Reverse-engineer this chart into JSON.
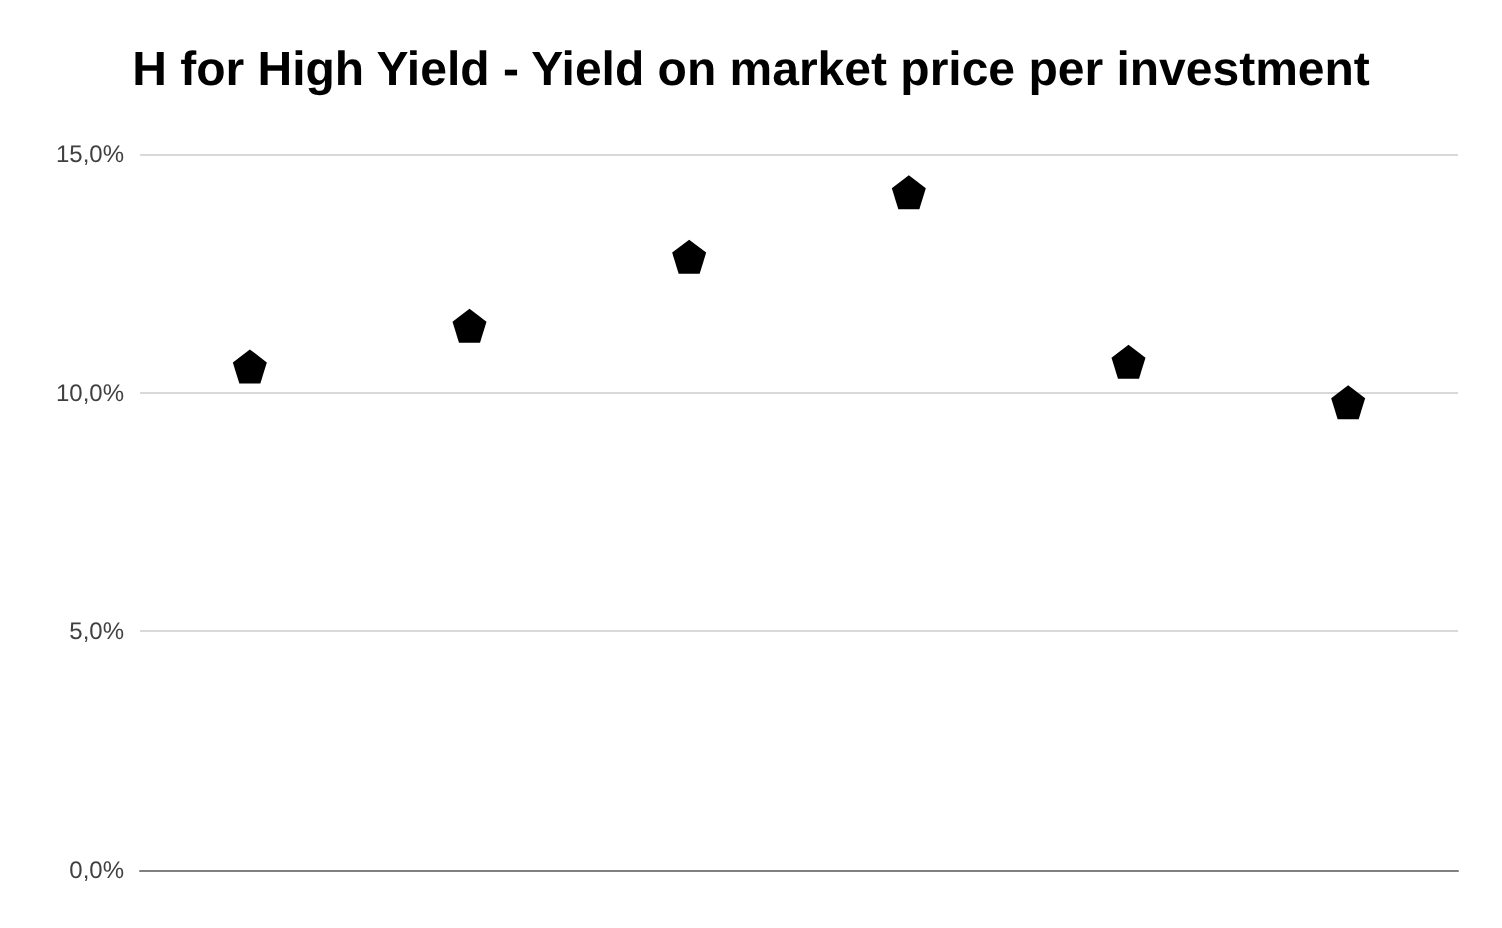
{
  "chart_data": {
    "type": "scatter",
    "title": "H for High Yield - Yield on market price per investment",
    "categories": [
      null,
      null,
      null,
      null,
      null,
      null
    ],
    "values": [
      10.55,
      11.4,
      12.85,
      14.2,
      10.65,
      9.8
    ],
    "color": "#000000",
    "ylim": [
      0,
      15
    ],
    "yticks": [
      {
        "value": 0,
        "label": "0,0%"
      },
      {
        "value": 5,
        "label": "5,0%"
      },
      {
        "value": 10,
        "label": "10,0%"
      },
      {
        "value": 15,
        "label": "15,0%"
      }
    ],
    "grid": "y"
  }
}
